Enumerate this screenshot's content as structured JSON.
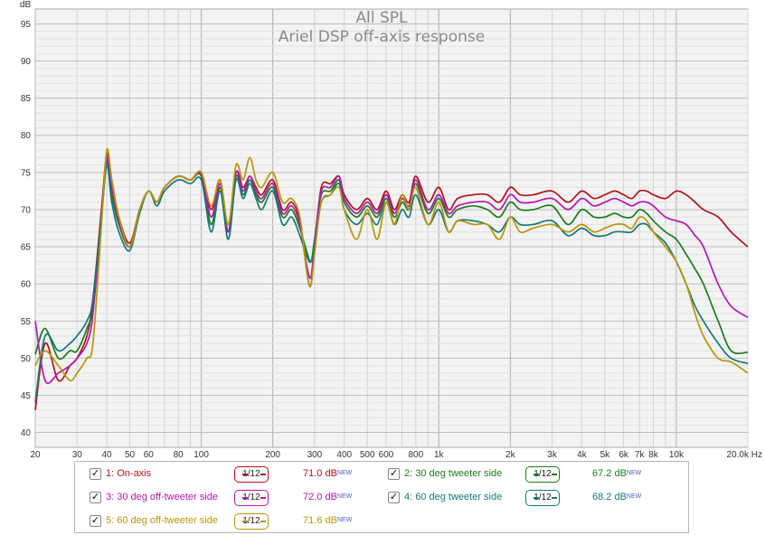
{
  "chart_data": {
    "type": "line",
    "title": "All SPL",
    "subtitle": "Ariel DSP off-axis response",
    "ylabel": "dB",
    "xunit": "Hz",
    "xscale": "log",
    "xlim": [
      20,
      20000
    ],
    "ylim": [
      38,
      97
    ],
    "grid": true,
    "xticks": [
      {
        "v": 20,
        "label": "20"
      },
      {
        "v": 30,
        "label": "30"
      },
      {
        "v": 40,
        "label": "40"
      },
      {
        "v": 50,
        "label": "50"
      },
      {
        "v": 60,
        "label": "60"
      },
      {
        "v": 80,
        "label": "80"
      },
      {
        "v": 100,
        "label": "100"
      },
      {
        "v": 200,
        "label": "200"
      },
      {
        "v": 300,
        "label": "300"
      },
      {
        "v": 400,
        "label": "400"
      },
      {
        "v": 500,
        "label": "500"
      },
      {
        "v": 600,
        "label": "600"
      },
      {
        "v": 800,
        "label": "800"
      },
      {
        "v": 1000,
        "label": "1k"
      },
      {
        "v": 2000,
        "label": "2k"
      },
      {
        "v": 3000,
        "label": "3k"
      },
      {
        "v": 4000,
        "label": "4k"
      },
      {
        "v": 5000,
        "label": "5k"
      },
      {
        "v": 6000,
        "label": "6k"
      },
      {
        "v": 7000,
        "label": "7k"
      },
      {
        "v": 8000,
        "label": "8k"
      },
      {
        "v": 10000,
        "label": "10k"
      },
      {
        "v": 20000,
        "label": "20.0k Hz"
      }
    ],
    "yticks": [
      40,
      45,
      50,
      55,
      60,
      65,
      70,
      75,
      80,
      85,
      90,
      95
    ],
    "series": [
      {
        "name": "1: On-axis",
        "color": "#b0141c",
        "value": "71.0 dB",
        "x": [
          20,
          22,
          25,
          28,
          30,
          33,
          35,
          38,
          40,
          42,
          45,
          50,
          55,
          60,
          65,
          70,
          80,
          90,
          100,
          110,
          120,
          130,
          140,
          150,
          160,
          170,
          180,
          200,
          220,
          240,
          260,
          280,
          290,
          300,
          320,
          350,
          380,
          400,
          450,
          500,
          550,
          600,
          650,
          700,
          750,
          800,
          900,
          1000,
          1100,
          1200,
          1400,
          1600,
          1800,
          2000,
          2200,
          2500,
          3000,
          3500,
          4000,
          4500,
          5000,
          5500,
          6000,
          6500,
          7000,
          7500,
          8000,
          9000,
          10000,
          11000,
          12000,
          13000,
          15000,
          17000,
          20000
        ],
        "y": [
          43,
          52,
          47,
          49,
          50,
          53,
          58,
          70,
          77.5,
          74,
          69,
          65.5,
          70,
          72.5,
          71,
          73,
          74.5,
          74,
          75,
          70,
          74,
          67,
          75,
          73,
          74.5,
          73,
          72,
          74,
          70,
          71,
          68.5,
          61,
          60,
          65,
          73,
          73.5,
          74.5,
          72,
          70,
          71.5,
          70,
          72.5,
          70,
          72,
          71,
          74.5,
          71,
          73,
          70,
          71.5,
          72,
          72,
          71,
          73,
          72,
          72,
          72.5,
          71,
          72.5,
          71.5,
          72,
          72.5,
          72,
          71.5,
          72.5,
          72.5,
          72,
          71.5,
          72.5,
          72,
          71,
          70,
          69,
          67,
          65
        ]
      },
      {
        "name": "2: 30 deg tweeter side",
        "color": "#1a7d1a",
        "value": "67.2 dB",
        "x": [
          20,
          22,
          25,
          28,
          30,
          33,
          35,
          38,
          40,
          42,
          45,
          50,
          55,
          60,
          65,
          70,
          80,
          90,
          100,
          110,
          120,
          130,
          140,
          150,
          160,
          170,
          180,
          200,
          220,
          240,
          260,
          280,
          290,
          300,
          320,
          350,
          380,
          400,
          450,
          500,
          550,
          600,
          650,
          700,
          750,
          800,
          900,
          1000,
          1100,
          1200,
          1400,
          1600,
          1800,
          2000,
          2200,
          2500,
          3000,
          3500,
          4000,
          4500,
          5000,
          5500,
          6000,
          6500,
          7000,
          7500,
          8000,
          9000,
          10000,
          11000,
          12000,
          13000,
          15000,
          17000,
          20000
        ],
        "y": [
          50.5,
          54,
          50,
          51,
          51,
          54,
          57,
          69,
          76.5,
          72,
          68,
          65,
          70,
          72.5,
          71,
          73,
          74.5,
          74,
          74.5,
          68,
          73,
          67,
          74.5,
          72,
          74,
          72,
          71,
          73,
          69,
          70,
          67.5,
          64,
          63,
          66,
          72,
          72.5,
          74,
          71,
          69,
          70.5,
          69,
          71.5,
          69,
          71,
          70,
          73.5,
          69.5,
          71.5,
          69,
          70,
          70.5,
          70,
          69,
          71,
          70,
          70,
          70.5,
          68,
          70,
          69,
          69,
          69.5,
          69,
          69,
          70,
          69.5,
          68.5,
          67,
          66,
          64,
          62,
          60,
          55,
          51,
          50.8
        ]
      },
      {
        "name": "3: 30 deg off-tweeter side",
        "color": "#b318b3",
        "value": "72.0 dB",
        "x": [
          20,
          22,
          25,
          28,
          30,
          33,
          35,
          38,
          40,
          42,
          45,
          50,
          55,
          60,
          65,
          70,
          80,
          90,
          100,
          110,
          120,
          130,
          140,
          150,
          160,
          170,
          180,
          200,
          220,
          240,
          260,
          280,
          290,
          300,
          320,
          350,
          380,
          400,
          450,
          500,
          550,
          600,
          650,
          700,
          750,
          800,
          900,
          1000,
          1100,
          1200,
          1400,
          1600,
          1800,
          2000,
          2200,
          2500,
          3000,
          3500,
          4000,
          4500,
          5000,
          5500,
          6000,
          6500,
          7000,
          7500,
          8000,
          9000,
          10000,
          11000,
          12000,
          13000,
          15000,
          17000,
          20000
        ],
        "y": [
          55,
          47,
          48,
          49,
          50,
          52,
          56,
          69,
          77,
          73,
          68.5,
          65,
          70,
          72.5,
          71,
          73,
          74.5,
          74,
          74.8,
          69,
          73.5,
          67,
          75,
          72.5,
          74.5,
          72.5,
          71.5,
          73.5,
          69.5,
          70.5,
          68,
          62,
          61,
          65.5,
          72.5,
          73,
          74.5,
          71.5,
          69.5,
          71,
          69.5,
          72,
          69.5,
          71.5,
          70.5,
          74,
          70,
          72,
          69.5,
          70.5,
          71,
          71,
          70,
          72,
          71,
          71,
          71.5,
          70,
          71.5,
          70.5,
          71,
          71.5,
          71,
          70.5,
          71,
          71,
          70.5,
          69,
          68.5,
          68,
          66.5,
          65,
          60,
          57,
          55.5
        ]
      },
      {
        "name": "4: 60 deg tweeter side",
        "color": "#157878",
        "value": "68.2 dB",
        "x": [
          20,
          22,
          25,
          28,
          30,
          33,
          35,
          38,
          40,
          42,
          45,
          50,
          55,
          60,
          65,
          70,
          80,
          90,
          100,
          110,
          120,
          130,
          140,
          150,
          160,
          170,
          180,
          200,
          220,
          240,
          260,
          280,
          290,
          300,
          320,
          350,
          380,
          400,
          450,
          500,
          550,
          600,
          650,
          700,
          750,
          800,
          900,
          1000,
          1100,
          1200,
          1400,
          1600,
          1800,
          2000,
          2200,
          2500,
          3000,
          3500,
          4000,
          4500,
          5000,
          5500,
          6000,
          6500,
          7000,
          7500,
          8000,
          9000,
          10000,
          11000,
          12000,
          13000,
          15000,
          17000,
          20000
        ],
        "y": [
          44,
          53,
          51,
          52,
          53,
          55,
          58,
          69,
          76,
          71,
          67,
          64.5,
          69.5,
          72.5,
          70.5,
          72.5,
          74,
          73.5,
          74,
          67,
          72.5,
          66,
          74,
          71.5,
          73.5,
          71.5,
          70,
          72.5,
          68,
          69,
          66.5,
          63.5,
          63,
          65,
          71,
          72,
          73.5,
          70,
          68,
          69.5,
          68,
          71,
          68,
          70,
          69,
          72,
          68,
          70,
          67,
          68.5,
          68.5,
          68,
          67,
          69,
          68,
          68,
          68.5,
          66.5,
          67.5,
          66.5,
          66.5,
          67,
          67,
          67,
          68,
          68,
          67,
          65.5,
          63,
          60,
          57,
          55,
          52,
          50,
          49.3
        ]
      },
      {
        "name": "5: 60 deg off-tweeter side",
        "color": "#b8960a",
        "value": "71.6 dB",
        "x": [
          20,
          22,
          25,
          28,
          30,
          33,
          35,
          38,
          40,
          42,
          45,
          50,
          55,
          60,
          65,
          70,
          80,
          90,
          100,
          110,
          120,
          130,
          140,
          150,
          160,
          170,
          180,
          200,
          220,
          240,
          260,
          280,
          290,
          300,
          320,
          350,
          380,
          400,
          450,
          500,
          550,
          600,
          650,
          700,
          750,
          800,
          900,
          1000,
          1100,
          1200,
          1400,
          1600,
          1800,
          2000,
          2200,
          2500,
          3000,
          3500,
          4000,
          4500,
          5000,
          5500,
          6000,
          6500,
          7000,
          7500,
          8000,
          9000,
          10000,
          11000,
          12000,
          13000,
          15000,
          17000,
          20000
        ],
        "y": [
          49,
          51,
          49,
          47,
          48,
          50,
          52,
          68,
          78,
          74,
          69,
          65,
          70,
          72.5,
          71,
          73,
          74.5,
          74,
          75,
          70.5,
          74,
          68,
          76,
          74,
          77,
          74,
          73,
          75,
          71,
          71.5,
          69,
          61,
          60,
          64,
          71,
          72,
          73,
          70,
          66,
          70,
          66,
          71,
          68,
          72,
          70,
          73,
          68,
          71,
          67,
          68.5,
          68,
          68,
          66,
          69,
          67,
          67.5,
          68,
          67,
          68,
          67,
          67.5,
          68,
          68,
          67.5,
          69,
          68.5,
          67,
          65,
          63,
          60,
          56,
          53,
          50,
          49.5,
          48
        ]
      }
    ]
  },
  "axis": {
    "ylabel": "dB"
  },
  "legend": {
    "new_tag": "NEW",
    "smoothing_label": "1/12"
  }
}
